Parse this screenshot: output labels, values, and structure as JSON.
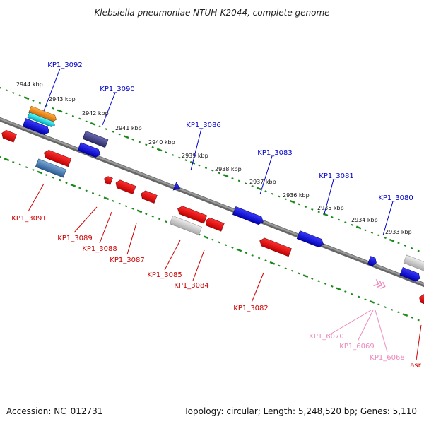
{
  "title": "Klebsiella pneumoniae NTUH-K2044, complete genome",
  "footer": {
    "accession": "Accession: NC_012731",
    "summary": "Topology: circular; Length: 5,248,520 bp; Genes: 5,110"
  },
  "ruler": [
    "2944 kbp",
    "2943 kbp",
    "2942 kbp",
    "2941 kbp",
    "2940 kbp",
    "2939 kbp",
    "2938 kbp",
    "2937 kbp",
    "2936 kbp",
    "2935 kbp",
    "2934 kbp",
    "2933 kbp"
  ],
  "colors": {
    "plus_strand": "#0000cc",
    "minus_strand": "#cc0000",
    "pseudo": "#ee88bb",
    "tick": "#1a8a1a",
    "backbone": "#888888"
  },
  "labels_plus": [
    "KP1_3092",
    "KP1_3090",
    "KP1_3086",
    "KP1_3083",
    "KP1_3081",
    "KP1_3080"
  ],
  "labels_minus": [
    "KP1_3091",
    "KP1_3089",
    "KP1_3088",
    "KP1_3087",
    "KP1_3085",
    "KP1_3084",
    "KP1_3082",
    "asr"
  ],
  "labels_pink": [
    "KP1_6070",
    "KP1_6069",
    "KP1_6068"
  ]
}
